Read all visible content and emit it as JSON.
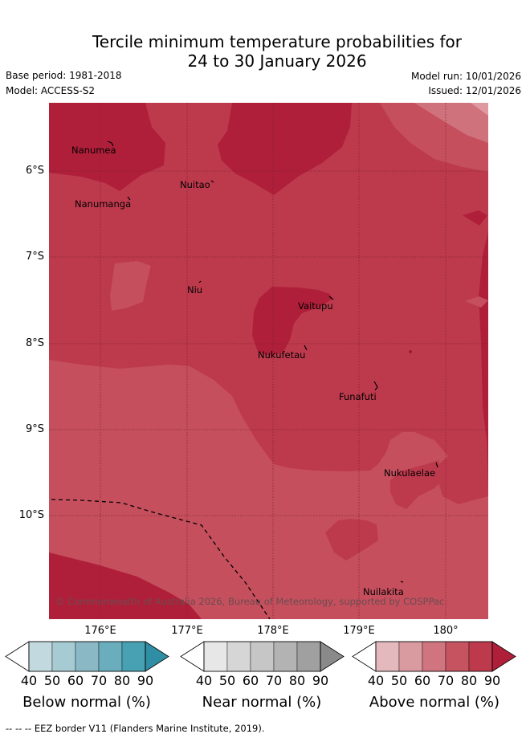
{
  "header": {
    "title_line1": "Tercile minimum temperature probabilities for",
    "title_line2": "24 to 30 January 2026",
    "base_period": "Base period: 1981-2018",
    "model": "Model: ACCESS-S2",
    "model_run": "Model run: 10/01/2026",
    "issued": "Issued: 12/01/2026"
  },
  "map": {
    "lat_labels": [
      "6°S",
      "7°S",
      "8°S",
      "9°S",
      "10°S"
    ],
    "lon_labels": [
      "176°E",
      "177°E",
      "178°E",
      "179°E",
      "180°"
    ],
    "places": [
      "Nanumea",
      "Nuitao",
      "Nanumanga",
      "Niu",
      "Vaitupu",
      "Nukufetau",
      "Funafuti",
      "Nukulaelae",
      "Nuilakita"
    ],
    "copyright": "© Commonwealth of Australia 2026, Bureau of Meteorology, supported by COSPPac",
    "colors": {
      "above_50_60": "#d0727c",
      "above_60_70": "#c54f5d",
      "above_70_80": "#bd3a4d",
      "above_80_90": "#b01f3a",
      "above_40_50": "#de9aa0"
    }
  },
  "colorbars": {
    "ticks": [
      "40",
      "50",
      "60",
      "70",
      "80",
      "90"
    ],
    "below": {
      "title": "Below normal (%)",
      "colors": [
        "#c1d9df",
        "#a7cbd2",
        "#8ab9c5",
        "#6aaebd",
        "#48a1b2",
        "#2f8ea3"
      ]
    },
    "near": {
      "title": "Near normal (%)",
      "colors": [
        "#e7e7e7",
        "#d6d6d6",
        "#c6c6c6",
        "#b3b3b3",
        "#a0a0a0",
        "#8a8a8a"
      ]
    },
    "above": {
      "title": "Above normal (%)",
      "colors": [
        "#e3b9be",
        "#d99aa0",
        "#d0757f",
        "#c65360",
        "#bd3a4d",
        "#b01f3a"
      ]
    }
  },
  "footer": "--  --  -- EEZ border V11 (Flanders Marine Institute, 2019)."
}
